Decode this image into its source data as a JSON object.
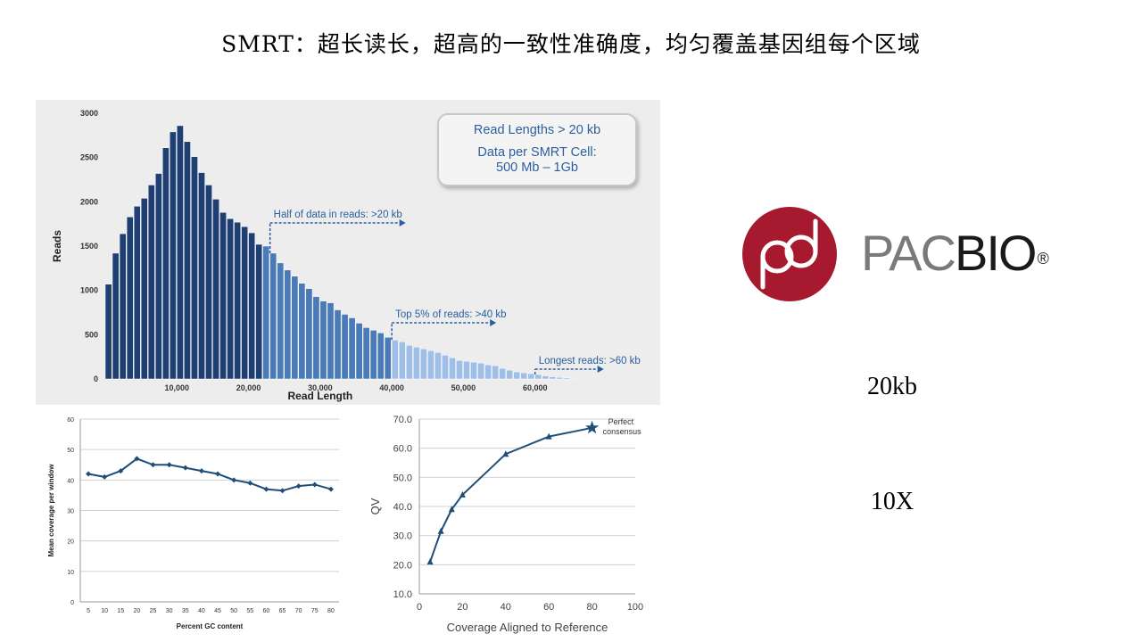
{
  "title": "SMRT：超长读长，超高的一致性准确度，均匀覆盖基因组每个区域",
  "infobox": {
    "line1": "Read Lengths > 20 kb",
    "line2a": "Data per SMRT Cell:",
    "line2b": "500 Mb – 1Gb"
  },
  "logo": {
    "pac": "PAC",
    "bio": "BIO",
    "reg": "®",
    "icon": "pacbio-logo-icon"
  },
  "side_labels": {
    "read_length": "20kb",
    "coverage": "10X"
  },
  "colors": {
    "dark_blue": "#1f3f73",
    "mid_blue": "#4a7ab8",
    "light_blue": "#9fbfe6",
    "line": "#1f4e79",
    "annotation": "#2a5f9e",
    "logo_red": "#a6192e"
  },
  "chart_data": [
    {
      "type": "bar",
      "xlabel": "Read Length",
      "ylabel": "Reads",
      "ylim": [
        0,
        3000
      ],
      "yticks": [
        0,
        500,
        1000,
        1500,
        2000,
        2500,
        3000
      ],
      "xlim": [
        0,
        70000
      ],
      "xticks": [
        10000,
        20000,
        30000,
        40000,
        50000,
        60000
      ],
      "xtick_labels": [
        "10,000",
        "20,000",
        "30,000",
        "40,000",
        "50,000",
        "60,000"
      ],
      "bin_width": 1000,
      "values": [
        1070,
        1420,
        1640,
        1830,
        1950,
        2040,
        2190,
        2320,
        2610,
        2790,
        2860,
        2680,
        2510,
        2330,
        2190,
        2030,
        1880,
        1810,
        1770,
        1720,
        1650,
        1520,
        1500,
        1420,
        1310,
        1230,
        1160,
        1080,
        1020,
        930,
        880,
        860,
        780,
        730,
        690,
        630,
        580,
        550,
        520,
        470,
        440,
        420,
        380,
        360,
        340,
        320,
        300,
        270,
        240,
        210,
        200,
        190,
        180,
        160,
        150,
        120,
        100,
        80,
        70,
        60,
        50,
        35,
        25,
        18,
        12,
        8
      ],
      "segments": [
        {
          "from": 0,
          "to": 22000,
          "color": "dark"
        },
        {
          "from": 22000,
          "to": 40000,
          "color": "mid"
        },
        {
          "from": 40000,
          "to": 70000,
          "color": "light"
        }
      ],
      "annotations": [
        {
          "text": "Half of data in reads: >20 kb",
          "x": 23000
        },
        {
          "text": "Top 5% of reads: >40 kb",
          "x": 40000
        },
        {
          "text": "Longest reads: >60 kb",
          "x": 60000
        }
      ]
    },
    {
      "type": "line",
      "xlabel": "Percent GC content",
      "ylabel": "Mean coverage per window",
      "ylim": [
        0,
        60
      ],
      "yticks": [
        0,
        10,
        20,
        30,
        40,
        50,
        60
      ],
      "x": [
        5,
        10,
        15,
        20,
        25,
        30,
        35,
        40,
        45,
        50,
        55,
        60,
        65,
        70,
        75,
        80
      ],
      "values": [
        42,
        41,
        43,
        47,
        45,
        45,
        44,
        43,
        42,
        40,
        39,
        37,
        36.5,
        38,
        38.5,
        37
      ]
    },
    {
      "type": "line",
      "xlabel": "Coverage Aligned to Reference",
      "ylabel": "QV",
      "xlim": [
        0,
        100
      ],
      "xticks": [
        0,
        20,
        40,
        60,
        80,
        100
      ],
      "ylim": [
        10,
        70
      ],
      "yticks": [
        10.0,
        20.0,
        30.0,
        40.0,
        50.0,
        60.0,
        70.0
      ],
      "x": [
        5,
        10,
        15,
        20,
        40,
        60,
        80
      ],
      "values": [
        21,
        31.5,
        39,
        44,
        58,
        64,
        67
      ],
      "annotation": {
        "line1": "Perfect",
        "line2": "consensus"
      }
    }
  ]
}
